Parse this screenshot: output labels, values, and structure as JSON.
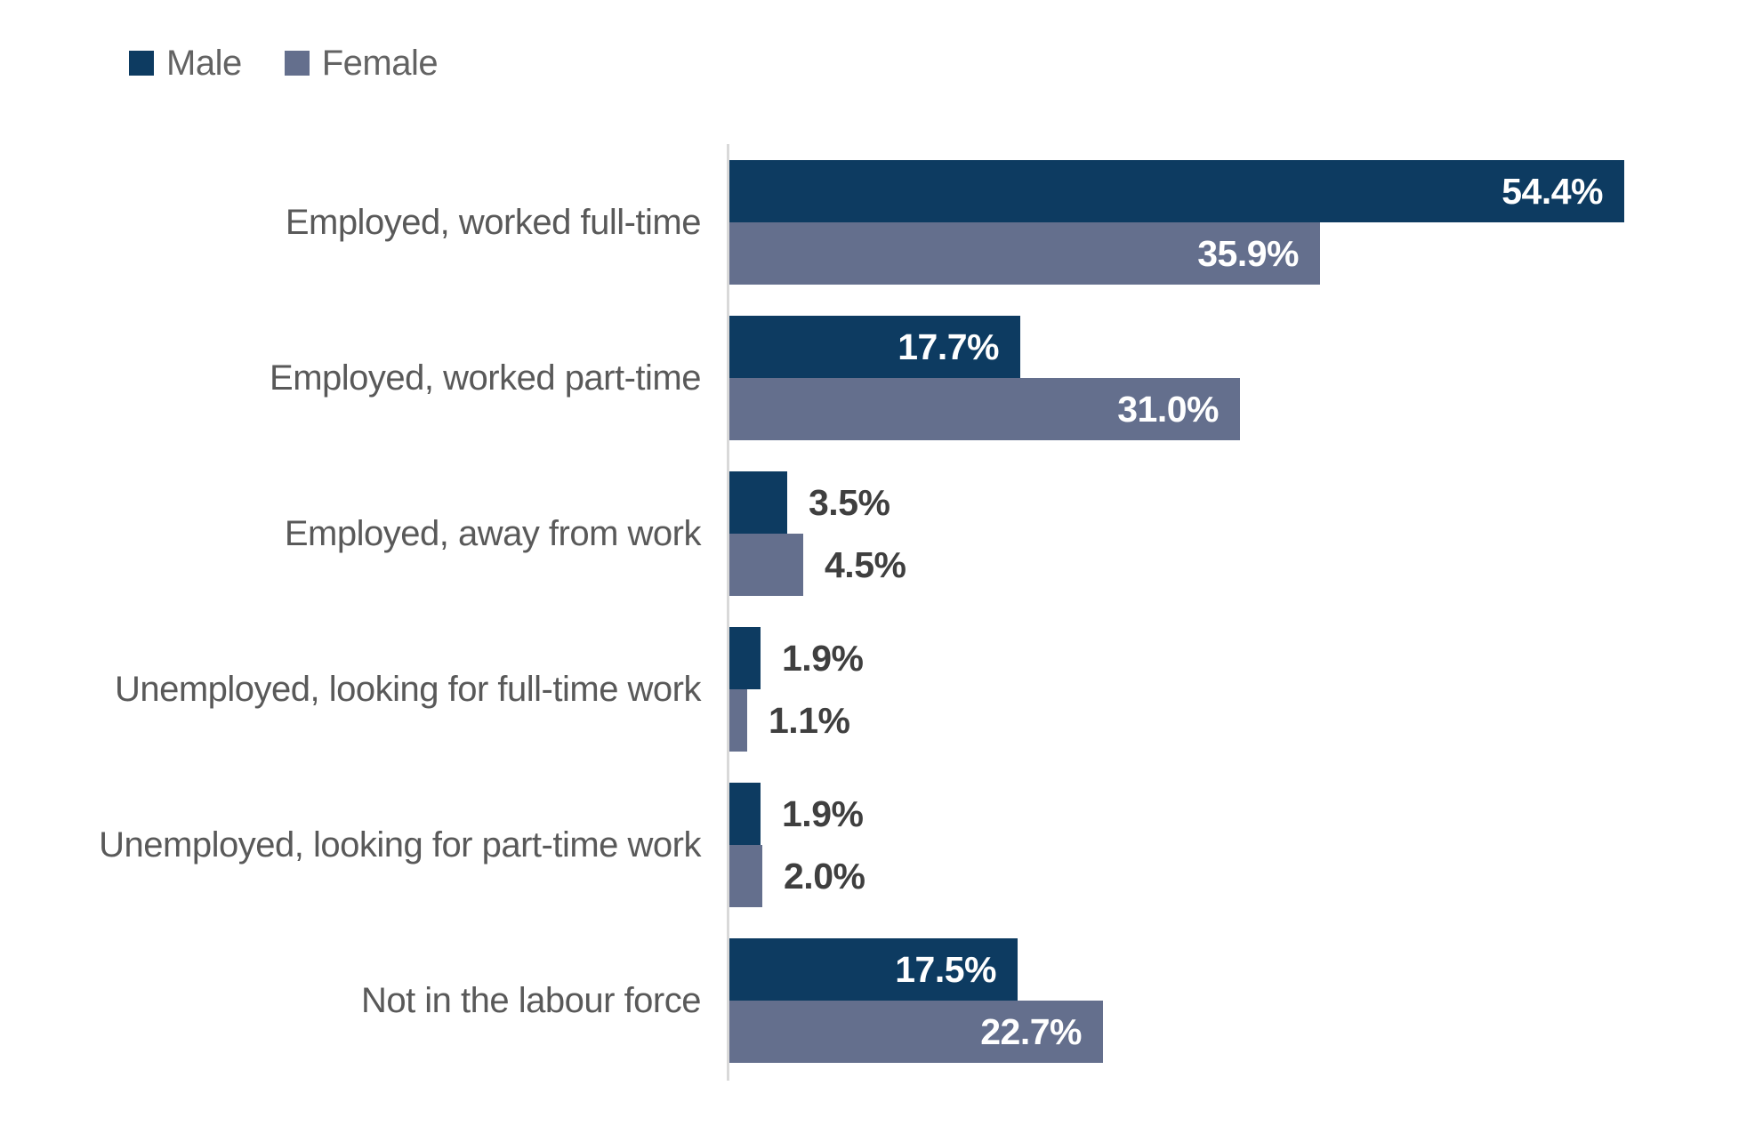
{
  "legend": {
    "items": [
      {
        "label": "Male",
        "color": "#0d3b61"
      },
      {
        "label": "Female",
        "color": "#646f8d"
      }
    ]
  },
  "colors": {
    "male_bar": "#0d3b61",
    "female_bar": "#646f8d",
    "axis_line": "#d9d9d9",
    "category_label": "#595959",
    "value_label_inside": "#ffffff",
    "value_label_outside": "#3f3f3f",
    "background": "#ffffff"
  },
  "chart_data": {
    "type": "bar",
    "orientation": "horizontal",
    "title": "",
    "categories": [
      "Employed, worked full-time",
      "Employed, worked part-time",
      "Employed, away from work",
      "Unemployed, looking for full-time work",
      "Unemployed, looking for part-time work",
      "Not in the labour force"
    ],
    "series": [
      {
        "name": "Male",
        "color": "#0d3b61",
        "values": [
          54.4,
          17.7,
          3.5,
          1.9,
          1.9,
          17.5
        ]
      },
      {
        "name": "Female",
        "color": "#646f8d",
        "values": [
          35.9,
          31.0,
          4.5,
          1.1,
          2.0,
          22.7
        ]
      }
    ],
    "value_suffix": "%",
    "value_decimals": 1,
    "xlim": [
      0,
      60
    ],
    "grid": false,
    "legend_position": "top-left",
    "value_label_rule": "inside bar when value >= 10, outside otherwise"
  }
}
